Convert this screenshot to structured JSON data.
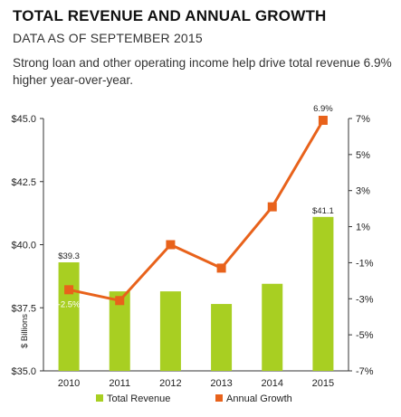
{
  "header": {
    "title": "TOTAL REVENUE AND ANNUAL GROWTH",
    "subtitle": "DATA AS OF SEPTEMBER 2015",
    "description": "Strong loan and other operating income help drive total revenue 6.9% higher year-over-year."
  },
  "chart_data": {
    "type": "bar",
    "categories": [
      "2010",
      "2011",
      "2012",
      "2013",
      "2014",
      "2015"
    ],
    "series": [
      {
        "name": "Total Revenue",
        "kind": "bar",
        "axis": "left",
        "color": "#a8cf22",
        "values": [
          39.3,
          38.15,
          38.15,
          37.65,
          38.45,
          41.1
        ]
      },
      {
        "name": "Annual Growth",
        "kind": "line",
        "axis": "right",
        "color": "#e8621b",
        "values": [
          -2.5,
          -3.1,
          0.0,
          -1.3,
          2.1,
          6.9
        ]
      }
    ],
    "data_labels": [
      {
        "series": 0,
        "index": 0,
        "text": "$39.3"
      },
      {
        "series": 0,
        "index": 5,
        "text": "$41.1"
      },
      {
        "series": 1,
        "index": 0,
        "text": "-2.5%"
      },
      {
        "series": 1,
        "index": 5,
        "text": "6.9%"
      }
    ],
    "ylabel": "$ Billions",
    "ylim": [
      35.0,
      45.0
    ],
    "y_ticks": [
      "$35.0",
      "$37.5",
      "$40.0",
      "$42.5",
      "$45.0"
    ],
    "y_tick_values": [
      35.0,
      37.5,
      40.0,
      42.5,
      45.0
    ],
    "y2lim": [
      -7,
      7
    ],
    "y2_ticks": [
      "-7%",
      "-5%",
      "-3%",
      "-1%",
      "1%",
      "3%",
      "5%",
      "7%"
    ],
    "y2_tick_values": [
      -7,
      -5,
      -3,
      -1,
      1,
      3,
      5,
      7
    ],
    "legend": {
      "position": "bottom",
      "items": [
        {
          "label": "Total Revenue",
          "color": "#a8cf22"
        },
        {
          "label": "Annual Growth",
          "color": "#e8621b"
        }
      ]
    },
    "grid": false
  }
}
